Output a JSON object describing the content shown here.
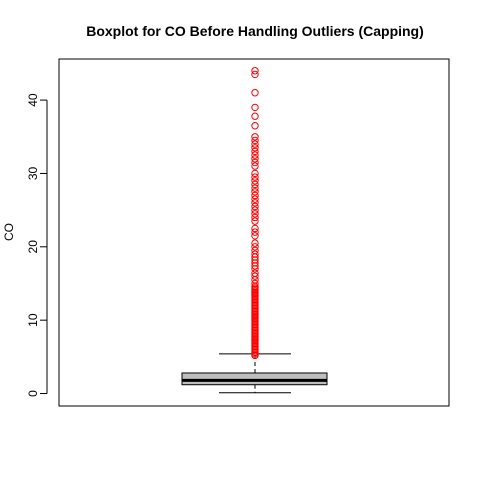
{
  "chart_data": {
    "type": "boxplot",
    "title": "Boxplot for CO Before Handling Outliers (Capping)",
    "xlabel": "",
    "ylabel": "CO",
    "ylim": [
      -1.7,
      45.6
    ],
    "yticks": [
      0,
      10,
      20,
      30,
      40
    ],
    "box": {
      "min": 0.1,
      "q1": 1.2,
      "median": 1.8,
      "q3": 2.8,
      "whisker_high": 5.4,
      "fill": "#bebebe"
    },
    "outliers": [
      5.2,
      5.4,
      5.6,
      5.8,
      6.0,
      6.2,
      6.4,
      6.6,
      6.8,
      7.0,
      7.2,
      7.4,
      7.6,
      7.8,
      8.0,
      8.2,
      8.4,
      8.6,
      8.8,
      9.0,
      9.2,
      9.4,
      9.6,
      9.8,
      10.0,
      10.2,
      10.4,
      10.6,
      10.8,
      11.0,
      11.2,
      11.4,
      11.6,
      11.8,
      12.0,
      12.2,
      12.4,
      12.6,
      12.8,
      13.0,
      13.2,
      13.4,
      13.6,
      13.8,
      14.0,
      14.2,
      14.4,
      14.6,
      15.0,
      15.5,
      16.0,
      16.4,
      17.0,
      17.4,
      17.8,
      18.2,
      18.6,
      19.0,
      19.5,
      20.0,
      20.5,
      21.5,
      22.0,
      22.5,
      23.5,
      24.0,
      24.5,
      25.0,
      25.5,
      26.0,
      26.5,
      27.0,
      27.5,
      28.0,
      28.5,
      29.0,
      29.5,
      30.0,
      31.0,
      31.5,
      32.0,
      32.5,
      33.0,
      33.5,
      34.0,
      34.5,
      35.0,
      36.5,
      37.8,
      39.0,
      41.0,
      43.5,
      44.0
    ],
    "outlier_color": "#ff0000",
    "grid": false
  }
}
